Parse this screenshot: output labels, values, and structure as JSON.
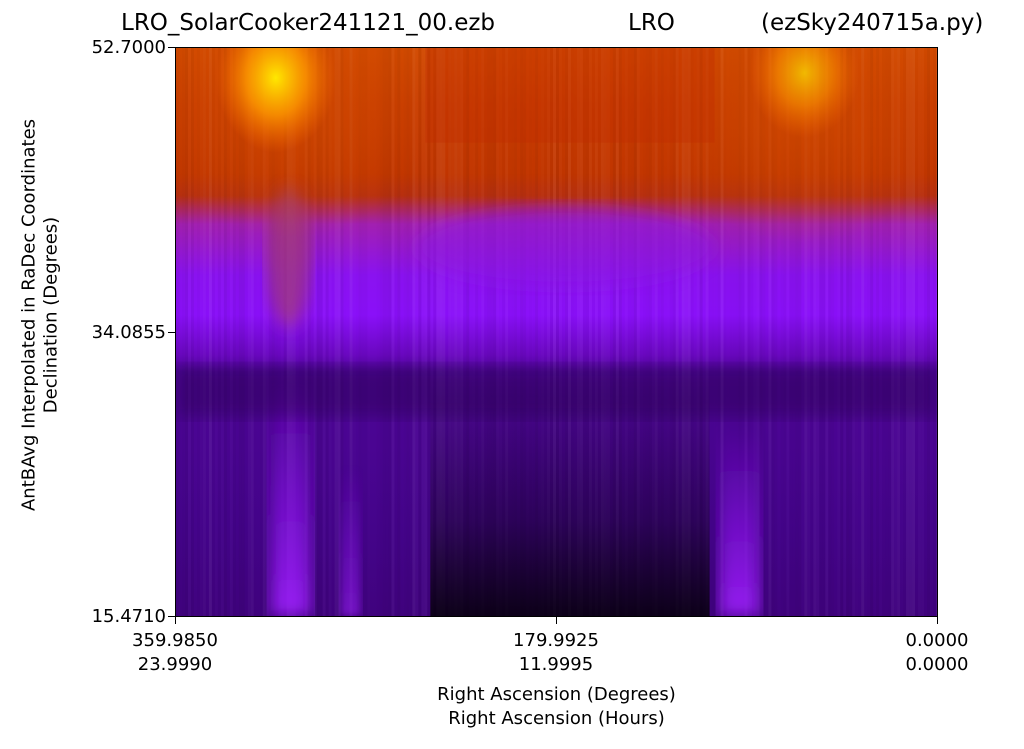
{
  "title": {
    "file": "LRO_SolarCooker241121_00.ezb",
    "site": "LRO",
    "program": "(ezSky240715a.py)"
  },
  "chart_data": {
    "type": "heatmap",
    "title": "LRO_SolarCooker241121_00.ezb LRO (ezSky240715a.py)",
    "xlabel": "Right Ascension (Degrees)",
    "xlabel2": "Right Ascension (Hours)",
    "ylabel": "AntBAvg Interpolated in RaDec Coordinates",
    "ylabel2": "Declination (Degrees)",
    "xlim_degrees": [
      359.985,
      0.0
    ],
    "ylim_degrees": [
      15.471,
      52.7
    ],
    "x_ticks": [
      {
        "degrees": "359.9850",
        "hours": "23.9990",
        "value": 359.985
      },
      {
        "degrees": "179.9925",
        "hours": "11.9995",
        "value": 179.9925
      },
      {
        "degrees": "0.0000",
        "hours": "0.0000",
        "value": 0.0
      }
    ],
    "y_ticks": [
      {
        "label": "52.7000",
        "value": 52.7
      },
      {
        "label": "34.0855",
        "value": 34.0855
      },
      {
        "label": "15.4710",
        "value": 15.471
      }
    ],
    "colormap": "gnuplot",
    "colorbar": false
  }
}
